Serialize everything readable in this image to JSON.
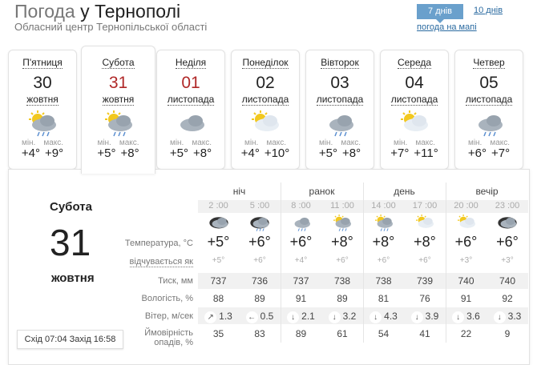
{
  "header": {
    "title_prefix": "Погода",
    "title_city": "у Тернополі",
    "subtitle": "Обласний центр Тернопільської області",
    "tab_7": "7 днів",
    "tab_10": "10 днів",
    "map_link": "погода на мапі"
  },
  "days": [
    {
      "name": "П'ятниця",
      "date": "30",
      "month": "жовтня",
      "icon": "sun-cloud-rain-icon",
      "min_label": "мін.",
      "max_label": "макс.",
      "min": "+4°",
      "max": "+9°",
      "weekend": false
    },
    {
      "name": "Субота",
      "date": "31",
      "month": "жовтня",
      "icon": "sun-cloud-rain-icon",
      "min_label": "мін.",
      "max_label": "макс.",
      "min": "+5°",
      "max": "+8°",
      "weekend": true,
      "selected": true
    },
    {
      "name": "Неділя",
      "date": "01",
      "month": "листопада",
      "icon": "cloudy-icon",
      "min_label": "мін.",
      "max_label": "макс.",
      "min": "+5°",
      "max": "+8°",
      "weekend": true
    },
    {
      "name": "Понеділок",
      "date": "02",
      "month": "листопада",
      "icon": "sun-cloud-icon",
      "min_label": "мін.",
      "max_label": "макс.",
      "min": "+4°",
      "max": "+10°",
      "weekend": false
    },
    {
      "name": "Вівторок",
      "date": "03",
      "month": "листопада",
      "icon": "cloud-rain-icon",
      "min_label": "мін.",
      "max_label": "макс.",
      "min": "+5°",
      "max": "+8°",
      "weekend": false
    },
    {
      "name": "Середа",
      "date": "04",
      "month": "листопада",
      "icon": "sun-cloud-icon",
      "min_label": "мін.",
      "max_label": "макс.",
      "min": "+7°",
      "max": "+11°",
      "weekend": false
    },
    {
      "name": "Четвер",
      "date": "05",
      "month": "листопада",
      "icon": "cloud-rain-icon",
      "min_label": "мін.",
      "max_label": "макс.",
      "min": "+6°",
      "max": "+7°",
      "weekend": false
    }
  ],
  "detail": {
    "day": "Субота",
    "date": "31",
    "month": "жовтня",
    "sun": "Схід 07:04 Захід 16:58",
    "labels": {
      "temp": "Температура, °C",
      "feels": "відчувається як",
      "pressure": "Тиск, мм",
      "humidity": "Вологість, %",
      "wind": "Вітер, м/сек",
      "precip_1": "Ймовірність",
      "precip_2": "опадів, %"
    },
    "periods": [
      "ніч",
      "ранок",
      "день",
      "вечір"
    ],
    "hours": [
      {
        "time": "2 :00",
        "icon": "cloud-night-icon",
        "temp": "+5°",
        "feels": "+5°",
        "pressure": "737",
        "humidity": "88",
        "wind_dir": "↗",
        "wind": "1.3",
        "precip": "35"
      },
      {
        "time": "5 :00",
        "icon": "cloud-night-rain-icon",
        "temp": "+6°",
        "feels": "+6°",
        "pressure": "736",
        "humidity": "89",
        "wind_dir": "←",
        "wind": "0.5",
        "precip": "83"
      },
      {
        "time": "8 :00",
        "icon": "cloud-rain-icon",
        "temp": "+6°",
        "feels": "+4°",
        "pressure": "737",
        "humidity": "91",
        "wind_dir": "↓",
        "wind": "2.1",
        "precip": "89"
      },
      {
        "time": "11 :00",
        "icon": "sun-cloud-rain-icon",
        "temp": "+8°",
        "feels": "+6°",
        "pressure": "738",
        "humidity": "89",
        "wind_dir": "↓",
        "wind": "3.2",
        "precip": "61"
      },
      {
        "time": "14 :00",
        "icon": "sun-cloud-rain-icon",
        "temp": "+8°",
        "feels": "+6°",
        "pressure": "738",
        "humidity": "81",
        "wind_dir": "↓",
        "wind": "4.3",
        "precip": "54"
      },
      {
        "time": "17 :00",
        "icon": "sun-cloud-icon",
        "temp": "+8°",
        "feels": "+6°",
        "pressure": "739",
        "humidity": "76",
        "wind_dir": "↓",
        "wind": "3.9",
        "precip": "41"
      },
      {
        "time": "20 :00",
        "icon": "sun-cloud-icon",
        "temp": "+6°",
        "feels": "+3°",
        "pressure": "740",
        "humidity": "91",
        "wind_dir": "↓",
        "wind": "3.6",
        "precip": "22"
      },
      {
        "time": "23 :00",
        "icon": "cloud-night-icon",
        "temp": "+6°",
        "feels": "+3°",
        "pressure": "740",
        "humidity": "92",
        "wind_dir": "↓",
        "wind": "3.3",
        "precip": "9"
      }
    ]
  },
  "colors": {
    "accent": "#6aa0cc",
    "link": "#2a6aa0",
    "weekend": "#b02828"
  }
}
